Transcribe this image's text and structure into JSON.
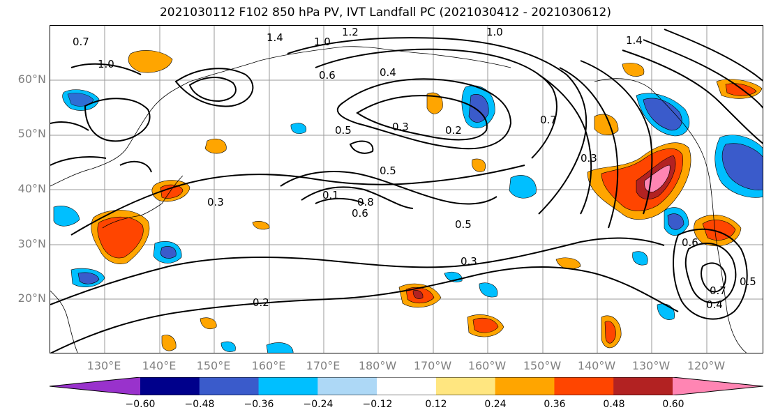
{
  "title": "2021030112 F102 850 hPa PV, IVT Landfall PC (2021030412 - 2021030612)",
  "lat_labels": [
    "60°N",
    "50°N",
    "40°N",
    "30°N",
    "20°N"
  ],
  "lon_labels": [
    "130°E",
    "140°E",
    "150°E",
    "160°E",
    "170°E",
    "180°W",
    "170°W",
    "160°W",
    "150°W",
    "140°W",
    "130°W",
    "120°W"
  ],
  "colorbar": {
    "ticks": [
      "−0.60",
      "−0.48",
      "−0.36",
      "−0.24",
      "−0.12",
      "0.12",
      "0.24",
      "0.36",
      "0.48",
      "0.60"
    ],
    "colors": [
      "#9932CC",
      "#00008B",
      "#3A5BCB",
      "#00BFFF",
      "#ADD8F6",
      "#FFFFFF",
      "#FFE680",
      "#FFA500",
      "#FF4500",
      "#B22222",
      "#FF85B3"
    ]
  },
  "contour_labels": [
    "0.7",
    "1.0",
    "1.4",
    "1.0",
    "1.2",
    "1.0",
    "1.4",
    "0.6",
    "0.4",
    "0.2",
    "0.5",
    "0.3",
    "0.5",
    "0.1",
    "0.8",
    "0.6",
    "0.3",
    "0.5",
    "0.3",
    "0.2",
    "0.7",
    "0.3",
    "0.6",
    "0.7",
    "0.5",
    "0.4"
  ]
}
